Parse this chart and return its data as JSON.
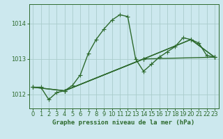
{
  "title": "Graphe pression niveau de la mer (hPa)",
  "bg_color": "#cce8ee",
  "grid_color": "#aacccc",
  "line_color": "#2d6a2d",
  "xlim": [
    -0.5,
    23.5
  ],
  "ylim": [
    1011.6,
    1014.55
  ],
  "yticks": [
    1012,
    1013,
    1014
  ],
  "xticks": [
    0,
    1,
    2,
    3,
    4,
    5,
    6,
    7,
    8,
    9,
    10,
    11,
    12,
    13,
    14,
    15,
    16,
    17,
    18,
    19,
    20,
    21,
    22,
    23
  ],
  "series": [
    {
      "x": [
        0,
        1,
        2,
        3,
        4,
        5,
        6,
        7,
        8,
        9,
        10,
        11,
        12,
        13,
        14,
        15,
        16,
        17,
        18,
        19,
        20,
        21,
        22,
        23
      ],
      "y": [
        1012.2,
        1012.2,
        1011.85,
        1012.05,
        1012.1,
        1012.25,
        1012.55,
        1013.15,
        1013.55,
        1013.85,
        1014.1,
        1014.25,
        1014.2,
        1013.0,
        1012.65,
        1012.85,
        1013.05,
        1013.2,
        1013.35,
        1013.6,
        1013.55,
        1013.45,
        1013.1,
        1013.05
      ],
      "marker": true
    },
    {
      "x": [
        0,
        4,
        14,
        23
      ],
      "y": [
        1012.2,
        1012.1,
        1013.0,
        1013.05
      ],
      "marker": false
    },
    {
      "x": [
        0,
        4,
        14,
        20,
        23
      ],
      "y": [
        1012.2,
        1012.1,
        1013.0,
        1013.55,
        1013.05
      ],
      "marker": false
    },
    {
      "x": [
        4,
        14,
        20,
        23
      ],
      "y": [
        1012.1,
        1013.0,
        1013.55,
        1013.05
      ],
      "marker": false
    }
  ],
  "marker_symbol": "+",
  "markersize": 4,
  "linewidth": 1.0,
  "xlabel_fontsize": 6.5,
  "tick_fontsize": 6
}
